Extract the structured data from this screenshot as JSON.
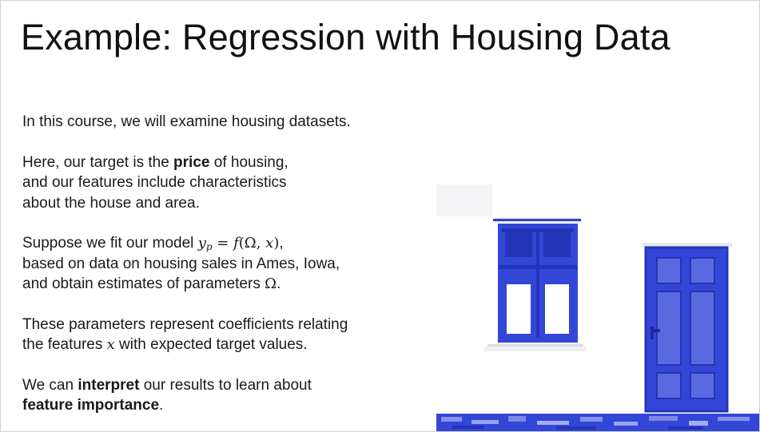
{
  "slide": {
    "title": "Example: Regression with Housing Data",
    "p1": "In this course, we will examine housing datasets.",
    "p2": {
      "l1a": "Here, our target is the ",
      "l1b": "price",
      "l1c": " of housing,",
      "l2": "and our features include characteristics",
      "l3": "about the house and area."
    },
    "p3": {
      "l1a": "Suppose we fit our model ",
      "m_y": "y",
      "m_p": "p",
      "m_eq": " = ",
      "m_f": "f",
      "m_open": "(",
      "m_omega": "Ω",
      "m_comma": ", ",
      "m_x": "x",
      "m_close": ")",
      "l1end": ",",
      "l2": "based on data on housing sales in Ames, Iowa,",
      "l3a": "and obtain estimates of parameters ",
      "l3omega": "Ω",
      "l3end": "."
    },
    "p4": {
      "l1": "These parameters represent coefficients relating",
      "l2a": "the features ",
      "l2x": "x",
      "l2b": " with expected target values."
    },
    "p5": {
      "l1a": "We can ",
      "l1b": "interpret",
      "l1c": " our results to learn about",
      "l2a": "feature importance",
      "l2b": "."
    }
  },
  "colors": {
    "accent_blue": "#3346d6",
    "dark_blue": "#2434b8",
    "text": "#1a1a1a"
  }
}
